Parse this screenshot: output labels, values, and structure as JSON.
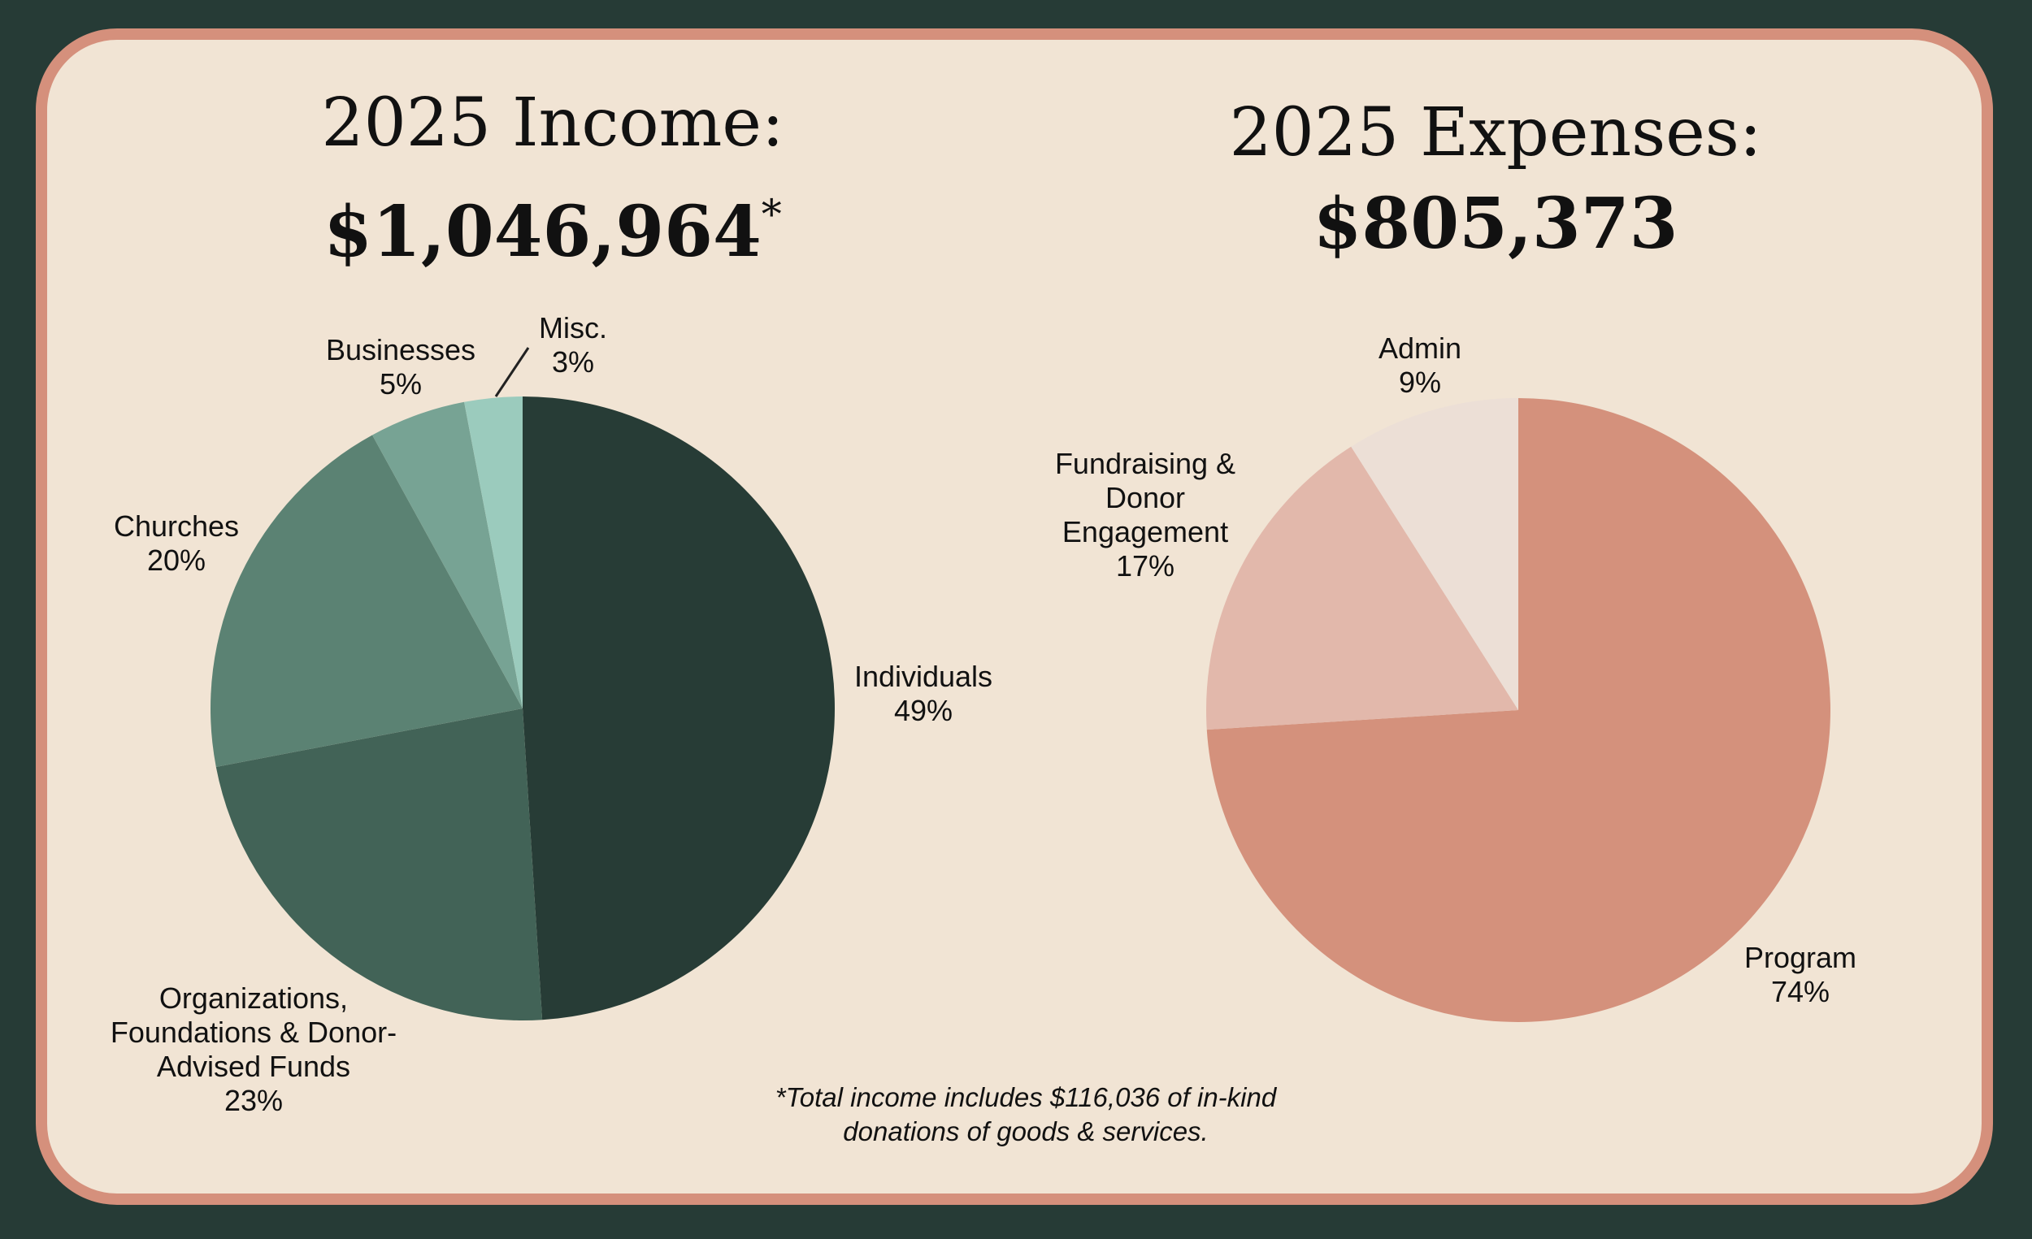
{
  "income": {
    "title_line1": "2025 Income:",
    "title_amount": "$1,046,964",
    "title_marker": "*"
  },
  "expenses": {
    "title_line1": "2025 Expenses:",
    "title_amount": "$805,373"
  },
  "footnote": {
    "line1": "*Total income includes $116,036 of in-kind",
    "line2": "donations of goods & services."
  },
  "chart_data": [
    {
      "type": "pie",
      "title": "2025 Income: $1,046,964*",
      "slices": [
        {
          "label_lines": [
            "Individuals"
          ],
          "value_label": "49%",
          "value": 49,
          "color": "#273c36"
        },
        {
          "label_lines": [
            "Organizations,",
            "Foundations & Donor-",
            "Advised Funds"
          ],
          "value_label": "23%",
          "value": 23,
          "color": "#426357"
        },
        {
          "label_lines": [
            "Churches"
          ],
          "value_label": "20%",
          "value": 20,
          "color": "#5b8273"
        },
        {
          "label_lines": [
            "Businesses"
          ],
          "value_label": "5%",
          "value": 5,
          "color": "#77a394"
        },
        {
          "label_lines": [
            "Misc."
          ],
          "value_label": "3%",
          "value": 3,
          "color": "#9bcbbd"
        }
      ]
    },
    {
      "type": "pie",
      "title": "2025 Expenses: $805,373",
      "slices": [
        {
          "label_lines": [
            "Program"
          ],
          "value_label": "74%",
          "value": 74,
          "color": "#d4917c"
        },
        {
          "label_lines": [
            "Fundraising &",
            "Donor",
            "Engagement"
          ],
          "value_label": "17%",
          "value": 17,
          "color": "#e2b8ab"
        },
        {
          "label_lines": [
            "Admin"
          ],
          "value_label": "9%",
          "value": 9,
          "color": "#ecdfd6"
        }
      ]
    }
  ]
}
